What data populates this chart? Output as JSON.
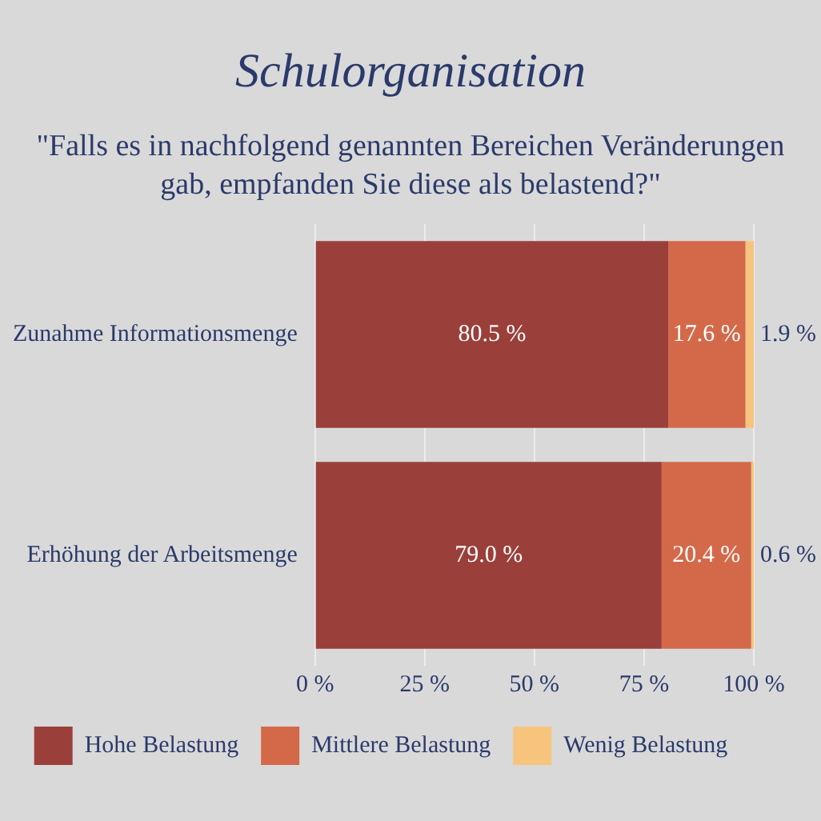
{
  "chart_data": {
    "type": "bar",
    "orientation": "horizontal",
    "stacked": true,
    "title": "Schulorganisation",
    "subtitle": "\"Falls es in nachfolgend genannten Bereichen Veränderungen gab, empfanden Sie diese als belastend?\"",
    "categories": [
      "Zunahme Informationsmenge",
      "Erhöhung der Arbeitsmenge"
    ],
    "series": [
      {
        "name": "Hohe Belastung",
        "color": "#9b3f3a",
        "values": [
          80.5,
          79.0
        ],
        "value_labels": [
          "80.5 %",
          "79.0 %"
        ]
      },
      {
        "name": "Mittlere Belastung",
        "color": "#d4694a",
        "values": [
          17.6,
          20.4
        ],
        "value_labels": [
          "17.6 %",
          "20.4 %"
        ]
      },
      {
        "name": "Wenig Belastung",
        "color": "#f7c47e",
        "values": [
          1.9,
          0.6
        ],
        "value_labels": [
          "1.9 %",
          "0.6 %"
        ]
      }
    ],
    "xlim": [
      0,
      100
    ],
    "xticks": [
      {
        "value": 0,
        "label": "0 %"
      },
      {
        "value": 25,
        "label": "25 %"
      },
      {
        "value": 50,
        "label": "50 %"
      },
      {
        "value": 75,
        "label": "75 %"
      },
      {
        "value": 100,
        "label": "100 %"
      }
    ],
    "grid": "x",
    "legend": "bottom"
  }
}
